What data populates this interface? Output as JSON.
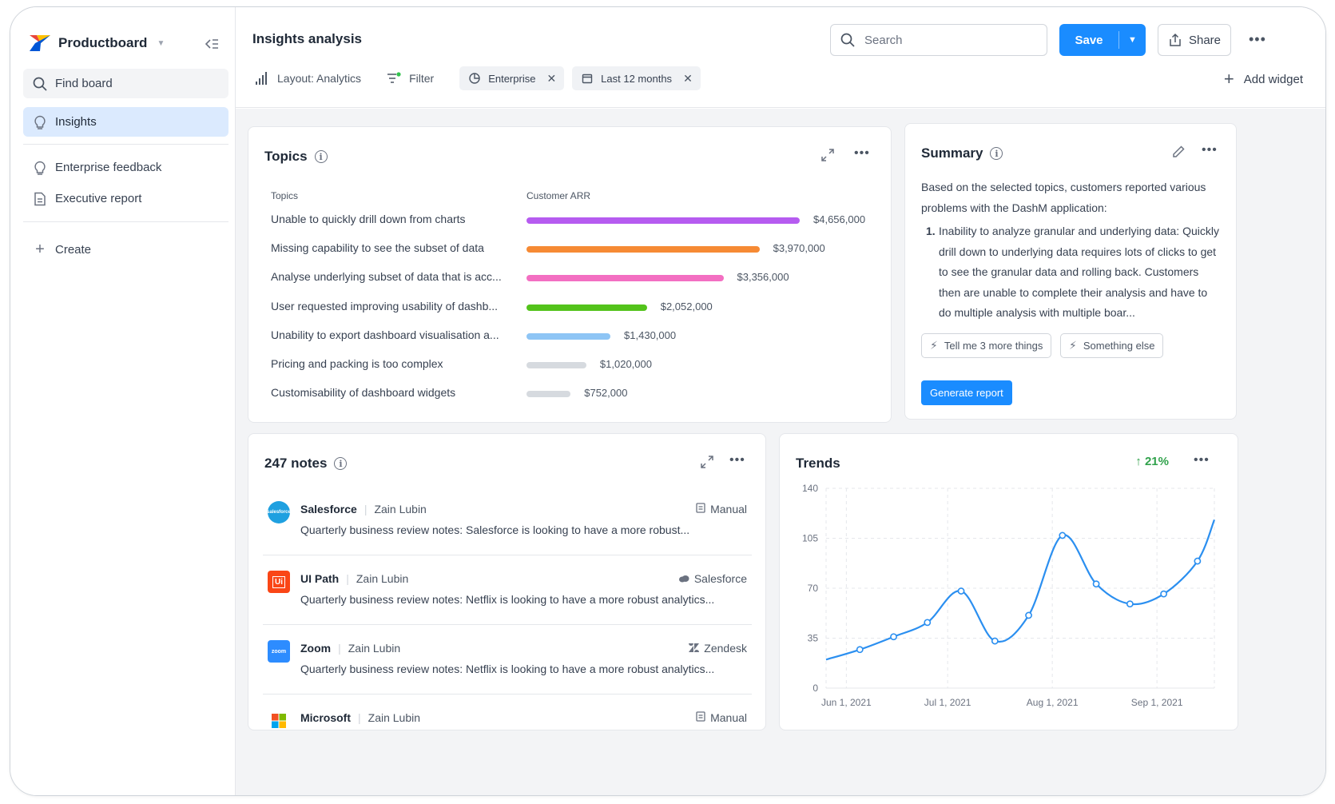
{
  "app": {
    "brand_name": "Productboard",
    "brand_colors": [
      "#e8453c",
      "#ffc000",
      "#0056d6"
    ]
  },
  "sidebar": {
    "find_label": "Find board",
    "items": [
      {
        "label": "Insights",
        "icon": "lightbulb-icon",
        "active": true
      },
      {
        "label": "Enterprise feedback",
        "icon": "lightbulb-icon",
        "active": false
      },
      {
        "label": "Executive report",
        "icon": "document-icon",
        "active": false
      }
    ],
    "create_label": "Create"
  },
  "header": {
    "title": "Insights analysis",
    "search_placeholder": "Search",
    "save_label": "Save",
    "share_label": "Share",
    "accent_color": "#1a8cff"
  },
  "toolbar": {
    "layout_label": "Layout: Analytics",
    "filter_label": "Filter",
    "chips": [
      {
        "label": "Enterprise",
        "icon": "pie-icon"
      },
      {
        "label": "Last 12 months",
        "icon": "calendar-icon"
      }
    ],
    "add_widget_label": "Add widget"
  },
  "topics": {
    "title": "Topics",
    "col_topics": "Topics",
    "col_arr": "Customer ARR",
    "rows": [
      {
        "label": "Unable to quickly drill down from charts",
        "value": 4656000,
        "display": "$4,656,000",
        "color": "#b65cf0"
      },
      {
        "label": "Missing capability to see the subset of data",
        "value": 3970000,
        "display": "$3,970,000",
        "color": "#f68a34"
      },
      {
        "label": "Analyse underlying subset of data that is acc...",
        "value": 3356000,
        "display": "$3,356,000",
        "color": "#f36fc2"
      },
      {
        "label": "User requested improving usability of dashb...",
        "value": 2052000,
        "display": "$2,052,000",
        "color": "#53c31b"
      },
      {
        "label": "Unability to export dashboard visualisation a...",
        "value": 1430000,
        "display": "$1,430,000",
        "color": "#8ec5f5"
      },
      {
        "label": "Pricing and packing is too complex",
        "value": 1020000,
        "display": "$1,020,000",
        "color": "#d6dadf"
      },
      {
        "label": "Customisability of dashboard widgets",
        "value": 752000,
        "display": "$752,000",
        "color": "#d6dadf"
      }
    ]
  },
  "summary": {
    "title": "Summary",
    "intro": "Based on the selected topics, customers reported various problems with the DashM application:",
    "point_number": "1.",
    "point_text": "Inability to analyze granular and underlying data: Quickly drill down to underlying data requires lots of clicks to get to see the granular data and rolling back. Customers then are unable to complete their analysis and have to do multiple analysis with multiple boar...",
    "suggestions": [
      "Tell me 3 more things",
      "Something else"
    ],
    "generate_label": "Generate report"
  },
  "notes": {
    "title": "247 notes",
    "items": [
      {
        "company": "Salesforce",
        "author": "Zain Lubin",
        "source": "Manual",
        "source_icon": "document-icon",
        "text": "Quarterly business review notes: Salesforce is looking to have a more robust...",
        "logo_color": "#1fa0e0",
        "logo_text": "salesforce"
      },
      {
        "company": "UI Path",
        "author": "Zain Lubin",
        "source": "Salesforce",
        "source_icon": "cloud-icon",
        "text": "Quarterly business review notes: Netflix is looking to have a more robust analytics...",
        "logo_color": "#fa4616",
        "logo_text": "Ui"
      },
      {
        "company": "Zoom",
        "author": "Zain Lubin",
        "source": "Zendesk",
        "source_icon": "zendesk-icon",
        "text": "Quarterly business review notes: Netflix is looking to have a more robust analytics...",
        "logo_color": "#2d8cff",
        "logo_text": "zoom"
      },
      {
        "company": "Microsoft",
        "author": "Zain Lubin",
        "source": "Manual",
        "source_icon": "document-icon",
        "text": "",
        "logo_color": "",
        "logo_text": ""
      }
    ]
  },
  "trends": {
    "title": "Trends",
    "change": "21%",
    "change_color": "#31a24c"
  },
  "chart_data": {
    "type": "line",
    "title": "Trends",
    "xlabel": "",
    "ylabel": "",
    "ylim": [
      0,
      140
    ],
    "yticks": [
      0,
      35,
      70,
      105,
      140
    ],
    "xtick_labels": [
      "Jun 1, 2021",
      "Jul 1, 2021",
      "Aug 1, 2021",
      "Sep 1, 2021"
    ],
    "grid": true,
    "series": [
      {
        "color": "#2b8ff0",
        "x": [
          "2021-05-26",
          "2021-06-05",
          "2021-06-15",
          "2021-06-25",
          "2021-07-05",
          "2021-07-15",
          "2021-07-25",
          "2021-08-04",
          "2021-08-14",
          "2021-08-24",
          "2021-09-03",
          "2021-09-13",
          "2021-09-18"
        ],
        "values": [
          20,
          27,
          36,
          46,
          68,
          33,
          51,
          107,
          73,
          59,
          66,
          89,
          118
        ]
      }
    ]
  }
}
